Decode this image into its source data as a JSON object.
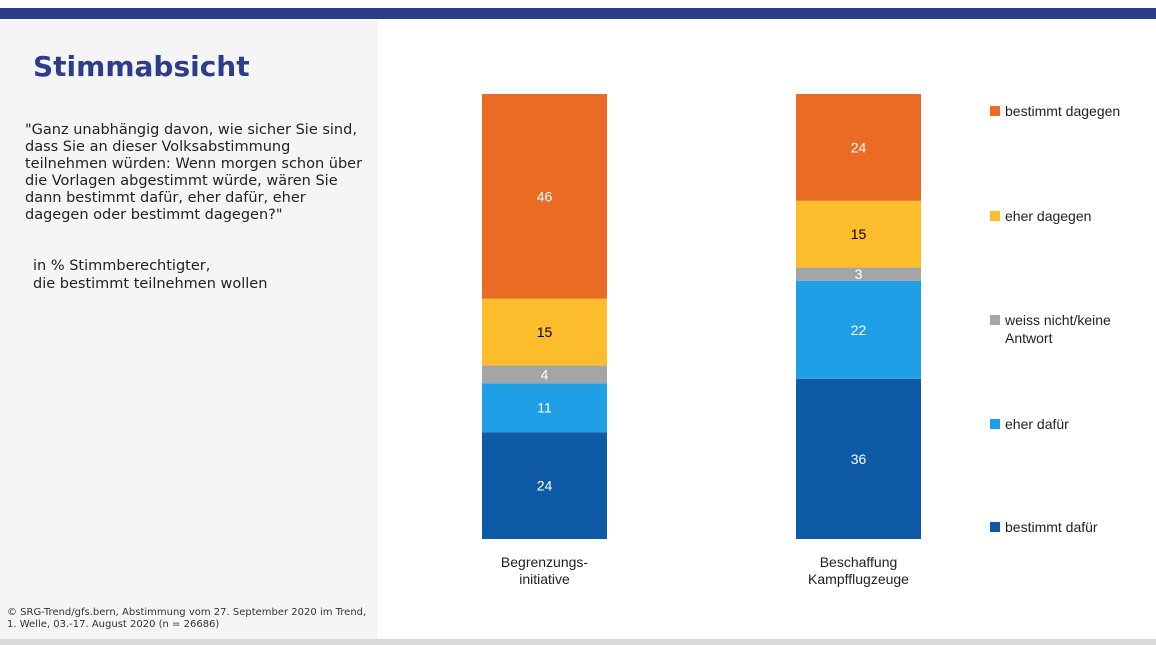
{
  "header": {
    "title": "Stimmabsicht",
    "question": "\"Ganz unabhängig davon, wie sicher Sie sind, dass Sie an dieser Volksabstimmung teilnehmen würden: Wenn morgen schon über die Vorlagen abgestimmt würde, wären Sie dann bestimmt dafür, eher dafür, eher dagegen oder bestimmt dagegen?\"",
    "basis": "in % Stimmberechtigter,\ndie bestimmt teilnehmen wollen",
    "source": "© SRG-Trend/gfs.bern, Abstimmung vom 27. September 2020 im Trend, 1. Welle, 03.-17. August 2020 (n = 26686)"
  },
  "colors": {
    "brand": "#2e3c8c",
    "panel": "#f5f5f5"
  },
  "chart_data": {
    "type": "bar",
    "stacked": true,
    "categories": [
      [
        "Begrenzungs-",
        "initiative"
      ],
      [
        "Beschaffung",
        "Kampfflugzeuge"
      ]
    ],
    "series": [
      {
        "name": "bestimmt dafür",
        "color": "#0e5aa7",
        "label_color": "#ffffff",
        "values": [
          24,
          36
        ]
      },
      {
        "name": "eher dafür",
        "color": "#1fa0e6",
        "label_color": "#ffffff",
        "values": [
          11,
          22
        ]
      },
      {
        "name": "weiss nicht/keine Antwort",
        "color": "#a5a5a5",
        "label_color": "#ffffff",
        "values": [
          4,
          3
        ]
      },
      {
        "name": "eher dagegen",
        "color": "#fbbd2b",
        "label_color": "#000000",
        "values": [
          15,
          15
        ]
      },
      {
        "name": "bestimmt dagegen",
        "color": "#e96b24",
        "label_color": "#ffffff",
        "values": [
          46,
          24
        ]
      }
    ],
    "ylim": [
      0,
      100
    ],
    "grid": false,
    "legend_position": "right",
    "legend_order": [
      "bestimmt dagegen",
      "eher dagegen",
      "weiss nicht/keine Antwort",
      "eher dafür",
      "bestimmt dafür"
    ]
  }
}
